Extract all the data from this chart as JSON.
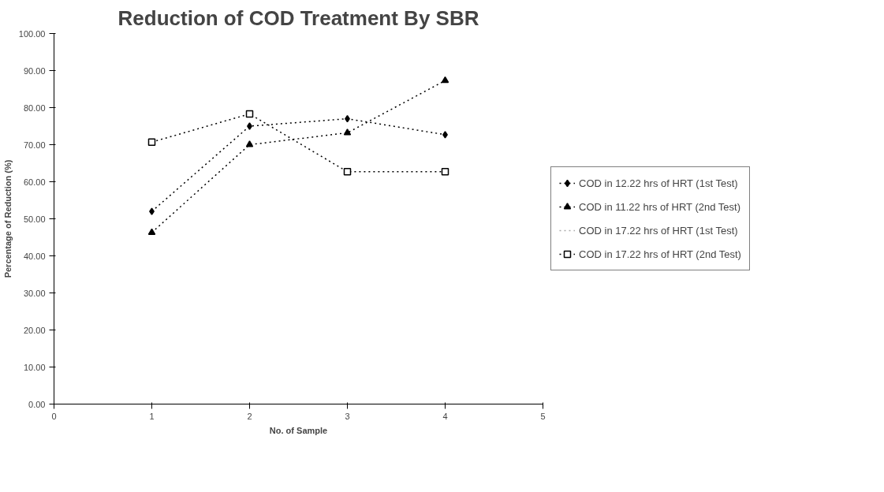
{
  "chart_data": {
    "type": "line",
    "title": "Reduction of COD Treatment By SBR",
    "xlabel": "No. of Sample",
    "ylabel": "Percentage of Reduction (%)",
    "x": [
      1,
      2,
      3,
      4
    ],
    "series": [
      {
        "name": "COD in 12.22 hrs of HRT (1st Test)",
        "color": "#000000",
        "marker": "diamond",
        "values": [
          52.0,
          75.0,
          77.0,
          72.7
        ]
      },
      {
        "name": "COD in 11.22 hrs of HRT (2nd Test)",
        "color": "#000000",
        "marker": "triangle",
        "values": [
          46.3,
          70.0,
          73.2,
          87.3
        ]
      },
      {
        "name": "COD in 17.22 hrs of HRT (1st Test)",
        "color": "#aaaaaa",
        "marker": "cross",
        "values": [
          null,
          null,
          null,
          null
        ]
      },
      {
        "name": "COD in 17.22 hrs of HRT (2nd Test)",
        "color": "#000000",
        "marker": "square",
        "values": [
          70.7,
          78.3,
          62.7,
          62.7
        ]
      }
    ],
    "xlim": [
      0,
      5
    ],
    "xticks": [
      0,
      1,
      2,
      3,
      4,
      5
    ],
    "ylim": [
      0,
      100
    ],
    "yticks": [
      {
        "value": 0,
        "label": "0.00"
      },
      {
        "value": 10,
        "label": "10.00"
      },
      {
        "value": 20,
        "label": "20.00"
      },
      {
        "value": 30,
        "label": "30.00"
      },
      {
        "value": 40,
        "label": "40.00"
      },
      {
        "value": 50,
        "label": "50.00"
      },
      {
        "value": 60,
        "label": "60.00"
      },
      {
        "value": 70,
        "label": "70.00"
      },
      {
        "value": 80,
        "label": "80.00"
      },
      {
        "value": 90,
        "label": "90.00"
      },
      {
        "value": 100,
        "label": "100.00"
      }
    ],
    "grid": false,
    "legend": "right",
    "line_style": "dotted"
  }
}
